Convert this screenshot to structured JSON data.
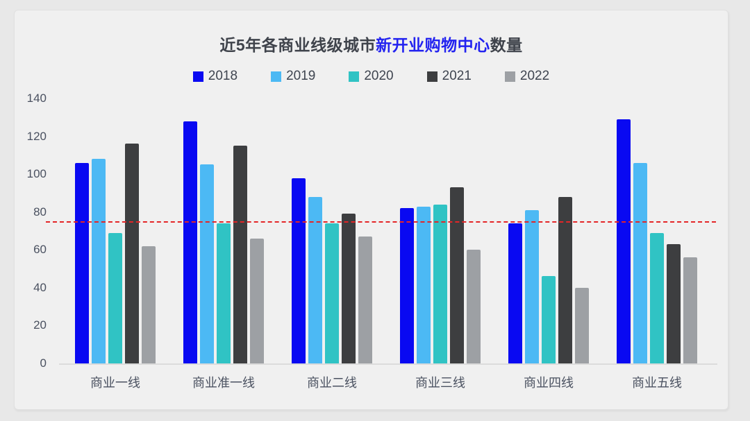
{
  "title": {
    "part1": "近5年各商业线级城市",
    "highlight": "新开业购物中心",
    "part2": "数量"
  },
  "colors": {
    "background": "#e8e8e8",
    "card": "#f0f0f0",
    "title_text": "#3f434b",
    "title_highlight": "#2222f0",
    "axis_text": "#4a5160",
    "axis_line": "#dbdbdb",
    "reference_line": "#e42527"
  },
  "chart_data": {
    "type": "bar",
    "title": "近5年各商业线级城市新开业购物中心数量",
    "categories": [
      "商业一线",
      "商业准一线",
      "商业二线",
      "商业三线",
      "商业四线",
      "商业五线"
    ],
    "series": [
      {
        "name": "2018",
        "color": "#0909f2",
        "values": [
          106,
          128,
          98,
          82,
          74,
          129
        ]
      },
      {
        "name": "2019",
        "color": "#4cb9f4",
        "values": [
          108,
          105,
          88,
          83,
          81,
          106
        ]
      },
      {
        "name": "2020",
        "color": "#30c3c4",
        "values": [
          69,
          74,
          74,
          84,
          46,
          69
        ]
      },
      {
        "name": "2021",
        "color": "#3d3e40",
        "values": [
          116,
          115,
          79,
          93,
          88,
          63
        ]
      },
      {
        "name": "2022",
        "color": "#9da0a4",
        "values": [
          62,
          66,
          67,
          60,
          40,
          56
        ]
      }
    ],
    "yticks": [
      0,
      20,
      40,
      60,
      80,
      100,
      120,
      140
    ],
    "ylim": [
      0,
      140
    ],
    "xlabel": "",
    "ylabel": "",
    "grid": false,
    "legend_position": "top",
    "reference_line": {
      "value": 75,
      "color": "#e42527",
      "style": "dashed"
    }
  }
}
